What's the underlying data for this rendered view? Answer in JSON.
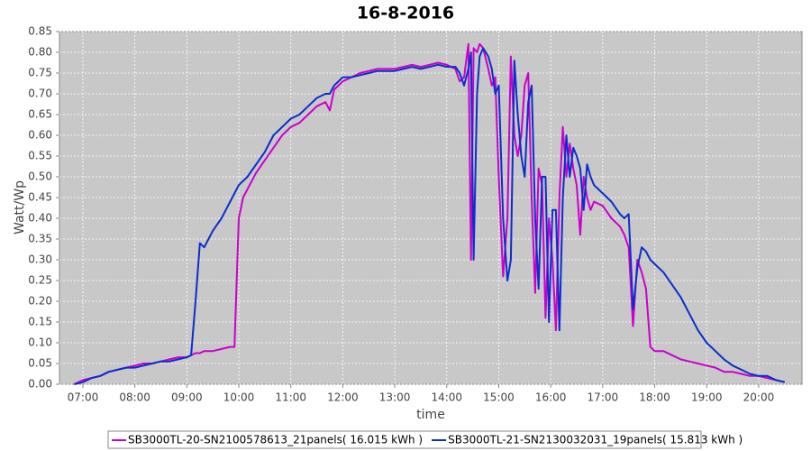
{
  "chart_data": {
    "type": "line",
    "title": "16-8-2016",
    "x_label": "time",
    "y_label": "Watt/Wp",
    "x": [
      "06:50",
      "07:00",
      "07:10",
      "07:20",
      "07:30",
      "07:40",
      "07:50",
      "08:00",
      "08:10",
      "08:20",
      "08:30",
      "08:40",
      "08:50",
      "09:00",
      "09:05",
      "09:10",
      "09:15",
      "09:20",
      "09:30",
      "09:40",
      "09:50",
      "09:55",
      "10:00",
      "10:05",
      "10:10",
      "10:20",
      "10:30",
      "10:40",
      "10:50",
      "11:00",
      "11:10",
      "11:20",
      "11:30",
      "11:40",
      "11:45",
      "11:50",
      "12:00",
      "12:10",
      "12:20",
      "12:30",
      "12:40",
      "12:50",
      "13:00",
      "13:10",
      "13:20",
      "13:30",
      "13:40",
      "13:50",
      "14:00",
      "14:10",
      "14:15",
      "14:20",
      "14:25",
      "14:28",
      "14:31",
      "14:35",
      "14:38",
      "14:42",
      "14:48",
      "14:52",
      "14:56",
      "15:00",
      "15:05",
      "15:10",
      "15:14",
      "15:18",
      "15:22",
      "15:26",
      "15:30",
      "15:34",
      "15:38",
      "15:42",
      "15:46",
      "15:50",
      "15:54",
      "15:58",
      "16:02",
      "16:06",
      "16:10",
      "16:14",
      "16:18",
      "16:22",
      "16:26",
      "16:30",
      "16:34",
      "16:38",
      "16:42",
      "16:46",
      "16:50",
      "17:00",
      "17:10",
      "17:20",
      "17:25",
      "17:30",
      "17:35",
      "17:40",
      "17:45",
      "17:50",
      "17:55",
      "18:00",
      "18:10",
      "18:20",
      "18:30",
      "18:40",
      "18:50",
      "19:00",
      "19:10",
      "19:20",
      "19:30",
      "19:40",
      "19:50",
      "20:00",
      "20:10",
      "20:20",
      "20:30"
    ],
    "series": [
      {
        "name": "SB3000TL-20-SN2100578613_21panels( 16.015 kWh )",
        "color": "#cc00cc",
        "values": [
          0,
          0.01,
          0.015,
          0.02,
          0.03,
          0.035,
          0.04,
          0.045,
          0.05,
          0.05,
          0.055,
          0.06,
          0.065,
          0.065,
          0.07,
          0.075,
          0.075,
          0.08,
          0.08,
          0.085,
          0.09,
          0.09,
          0.4,
          0.45,
          0.47,
          0.51,
          0.54,
          0.57,
          0.6,
          0.62,
          0.63,
          0.65,
          0.67,
          0.68,
          0.66,
          0.71,
          0.73,
          0.74,
          0.75,
          0.755,
          0.76,
          0.76,
          0.76,
          0.765,
          0.77,
          0.765,
          0.77,
          0.775,
          0.77,
          0.76,
          0.73,
          0.74,
          0.82,
          0.3,
          0.81,
          0.8,
          0.82,
          0.81,
          0.76,
          0.72,
          0.74,
          0.5,
          0.26,
          0.4,
          0.79,
          0.6,
          0.55,
          0.6,
          0.72,
          0.75,
          0.45,
          0.22,
          0.52,
          0.48,
          0.16,
          0.4,
          0.3,
          0.13,
          0.45,
          0.62,
          0.5,
          0.58,
          0.52,
          0.48,
          0.36,
          0.5,
          0.45,
          0.42,
          0.44,
          0.43,
          0.4,
          0.38,
          0.36,
          0.33,
          0.14,
          0.3,
          0.27,
          0.23,
          0.09,
          0.08,
          0.08,
          0.07,
          0.06,
          0.055,
          0.05,
          0.045,
          0.04,
          0.03,
          0.03,
          0.025,
          0.02,
          0.02,
          0.015,
          0.01,
          0.005
        ]
      },
      {
        "name": "SB3000TL-21-SN2130032031_19panels( 15.813 kWh )",
        "color": "#0a2ecc",
        "values": [
          0,
          0.005,
          0.015,
          0.02,
          0.03,
          0.035,
          0.04,
          0.04,
          0.045,
          0.05,
          0.055,
          0.055,
          0.06,
          0.065,
          0.07,
          0.2,
          0.34,
          0.33,
          0.37,
          0.4,
          0.44,
          0.46,
          0.48,
          0.49,
          0.5,
          0.53,
          0.56,
          0.6,
          0.62,
          0.64,
          0.65,
          0.67,
          0.69,
          0.7,
          0.7,
          0.72,
          0.74,
          0.74,
          0.745,
          0.75,
          0.755,
          0.755,
          0.755,
          0.76,
          0.765,
          0.76,
          0.765,
          0.77,
          0.765,
          0.765,
          0.75,
          0.72,
          0.76,
          0.8,
          0.3,
          0.7,
          0.79,
          0.81,
          0.79,
          0.76,
          0.7,
          0.72,
          0.4,
          0.25,
          0.3,
          0.78,
          0.65,
          0.55,
          0.5,
          0.68,
          0.72,
          0.4,
          0.23,
          0.5,
          0.5,
          0.15,
          0.42,
          0.42,
          0.13,
          0.45,
          0.6,
          0.5,
          0.57,
          0.55,
          0.52,
          0.42,
          0.53,
          0.5,
          0.48,
          0.46,
          0.44,
          0.41,
          0.4,
          0.41,
          0.18,
          0.28,
          0.33,
          0.32,
          0.3,
          0.29,
          0.27,
          0.24,
          0.21,
          0.17,
          0.13,
          0.1,
          0.08,
          0.06,
          0.045,
          0.035,
          0.025,
          0.02,
          0.02,
          0.01,
          0.005
        ]
      }
    ],
    "xlim": [
      "06:33",
      "20:50"
    ],
    "xticks": [
      "07:00",
      "08:00",
      "09:00",
      "10:00",
      "11:00",
      "12:00",
      "13:00",
      "14:00",
      "15:00",
      "16:00",
      "17:00",
      "18:00",
      "19:00",
      "20:00"
    ],
    "ylim": [
      0,
      0.85
    ],
    "yticks": [
      {
        "value": 0,
        "label": "0.00"
      },
      {
        "value": 0.05,
        "label": "0.05"
      },
      {
        "value": 0.1,
        "label": "0.10"
      },
      {
        "value": 0.15,
        "label": "0.15"
      },
      {
        "value": 0.2,
        "label": "0.20"
      },
      {
        "value": 0.25,
        "label": "0.25"
      },
      {
        "value": 0.3,
        "label": "0.30"
      },
      {
        "value": 0.35,
        "label": "0.35"
      },
      {
        "value": 0.4,
        "label": "0.40"
      },
      {
        "value": 0.45,
        "label": "0.45"
      },
      {
        "value": 0.5,
        "label": "0.50"
      },
      {
        "value": 0.55,
        "label": "0.55"
      },
      {
        "value": 0.6,
        "label": "0.60"
      },
      {
        "value": 0.65,
        "label": "0.65"
      },
      {
        "value": 0.7,
        "label": "0.70"
      },
      {
        "value": 0.75,
        "label": "0.75"
      },
      {
        "value": 0.8,
        "label": "0.80"
      },
      {
        "value": 0.85,
        "label": "0.85"
      }
    ],
    "grid": true,
    "legend": "bottom"
  }
}
